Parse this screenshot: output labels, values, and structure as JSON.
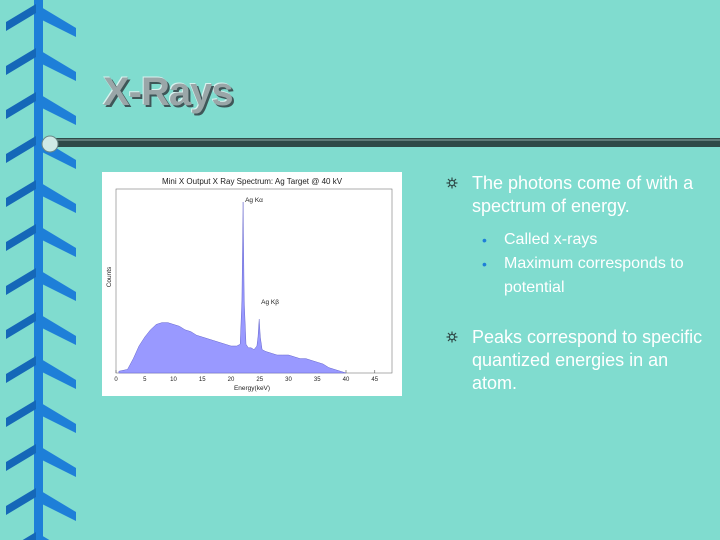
{
  "slide": {
    "title": "X-Rays",
    "bullets": [
      {
        "text": "The photons come of with a spectrum of energy.",
        "sub": [
          "Called x-rays",
          "Maximum corresponds to potential"
        ]
      },
      {
        "text": "Peaks correspond to specific quantized energies in an atom.",
        "sub": []
      }
    ],
    "bullet_icon": "asterisk-icon",
    "sub_bullet_icon": "dot-icon",
    "colors": {
      "background": "#80dccf",
      "binding": "#1e7fd8",
      "spectrum_fill": "#9999ff"
    }
  },
  "chart_data": {
    "type": "area",
    "title": "Mini X Output X Ray Spectrum: Ag Target @ 40 kV",
    "xlabel": "Energy(keV)",
    "ylabel": "Counts",
    "xticks": [
      "0",
      "5",
      "10",
      "15",
      "20",
      "25",
      "30",
      "35",
      "40",
      "45"
    ],
    "xlim": [
      0,
      48
    ],
    "ylim": [
      0,
      100
    ],
    "annotations": [
      {
        "text": "Ag Kα",
        "x": 22.1
      },
      {
        "text": "Ag Kβ",
        "x": 24.9
      }
    ],
    "series": [
      {
        "x": [
          0.5,
          2,
          3,
          4,
          5,
          6,
          7,
          8,
          9,
          10,
          11,
          12,
          13,
          14,
          15,
          16,
          17,
          18,
          19,
          20,
          21,
          21.6,
          21.9,
          22.1,
          22.3,
          22.6,
          23,
          23.5,
          24,
          24.5,
          24.7,
          24.9,
          25.1,
          25.4,
          26,
          27,
          28,
          29,
          30,
          31,
          32,
          33,
          34,
          35,
          36,
          37,
          38,
          39,
          40
        ],
        "y": [
          1,
          2,
          8,
          15,
          20,
          24,
          27,
          28,
          28,
          27,
          26,
          24,
          23,
          21,
          20,
          19,
          18,
          17,
          16,
          15,
          15,
          16,
          40,
          95,
          40,
          16,
          14,
          14,
          13,
          15,
          20,
          30,
          20,
          13,
          12,
          11,
          10,
          10,
          10,
          9,
          8,
          8,
          7,
          6,
          5,
          3,
          2,
          1,
          0
        ]
      }
    ]
  }
}
